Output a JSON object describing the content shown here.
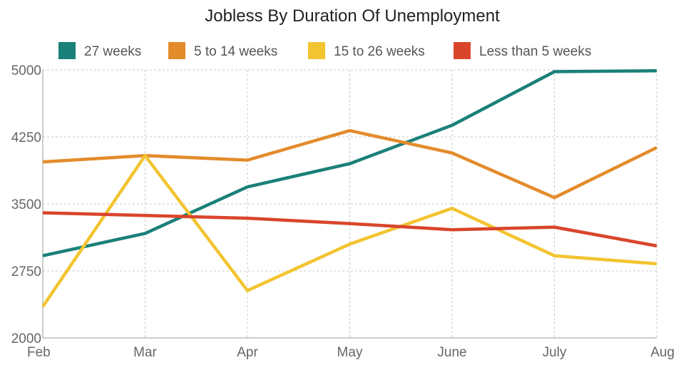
{
  "chart_data": {
    "type": "line",
    "title": "Jobless By Duration Of Unemployment",
    "xlabel": "",
    "ylabel": "",
    "categories": [
      "Feb",
      "Mar",
      "Apr",
      "May",
      "June",
      "July",
      "Aug"
    ],
    "ylim": [
      2000,
      5000
    ],
    "yticks": [
      2000,
      2750,
      3500,
      4250,
      5000
    ],
    "grid": true,
    "legend_position": "top",
    "series": [
      {
        "name": "27 weeks",
        "color": "#1a8078",
        "values": [
          2920,
          3170,
          3690,
          3950,
          4380,
          4980,
          4990
        ]
      },
      {
        "name": "5 to 14 weeks",
        "color": "#e38b2b",
        "values": [
          3970,
          4040,
          3990,
          4320,
          4070,
          3570,
          4130
        ]
      },
      {
        "name": "15 to 26 weeks",
        "color": "#f2c430",
        "values": [
          2350,
          4040,
          2530,
          3050,
          3450,
          2920,
          2830
        ]
      },
      {
        "name": "Less than 5 weeks",
        "color": "#d9452b",
        "values": [
          3400,
          3370,
          3340,
          3280,
          3210,
          3240,
          3030
        ]
      }
    ]
  }
}
